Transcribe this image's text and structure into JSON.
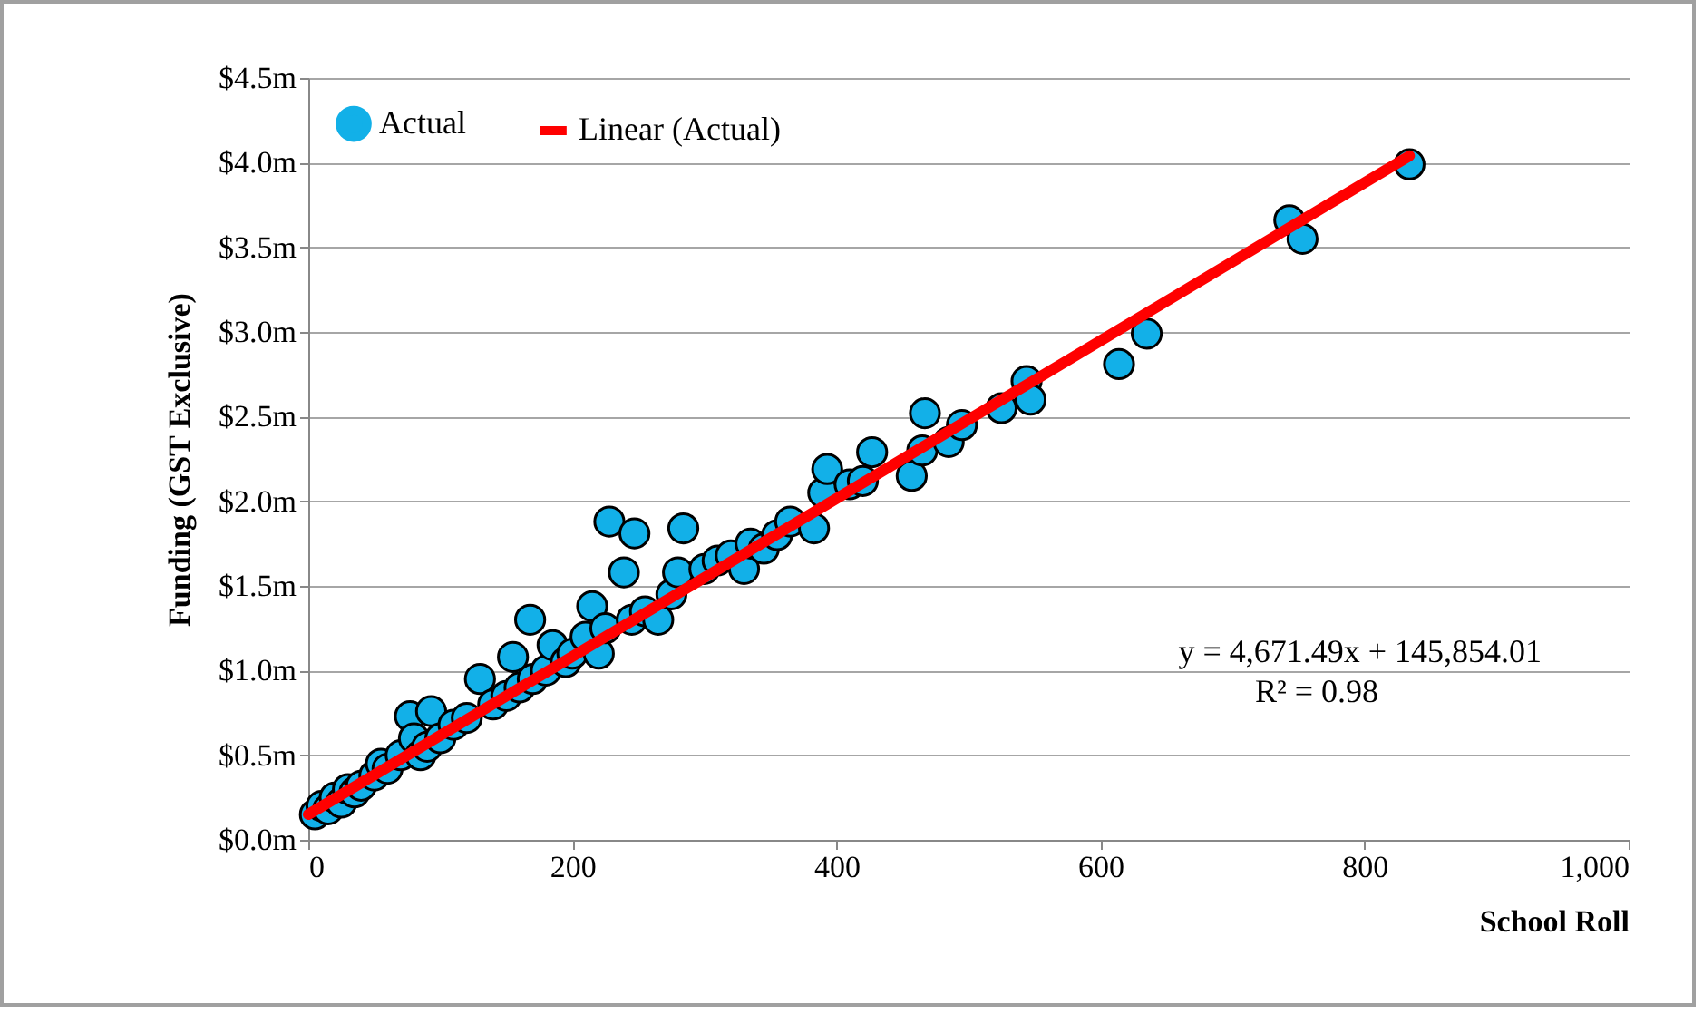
{
  "chart_data": {
    "type": "scatter",
    "xlabel": "School Roll",
    "ylabel": "Funding (GST Exclusive)",
    "xlim": [
      0,
      1000
    ],
    "xticks": [
      0,
      200,
      400,
      600,
      800,
      {
        "value": 1000,
        "label": "1,000"
      }
    ],
    "ylim": [
      0,
      4.5
    ],
    "yticks": [
      {
        "value": 0,
        "label": "$0.0m"
      },
      {
        "value": 0.5,
        "label": "$0.5m"
      },
      {
        "value": 1,
        "label": "$1.0m"
      },
      {
        "value": 1.5,
        "label": "$1.5m"
      },
      {
        "value": 2,
        "label": "$2.0m"
      },
      {
        "value": 2.5,
        "label": "$2.5m"
      },
      {
        "value": 3,
        "label": "$3.0m"
      },
      {
        "value": 3.5,
        "label": "$3.5m"
      },
      {
        "value": 4,
        "label": "$4.0m"
      },
      {
        "value": 4.5,
        "label": "$4.5m"
      }
    ],
    "grid": "y",
    "legend": "top left",
    "annotations": [
      "y = 4,671.49x + 145,854.01",
      "R² = 0.98"
    ],
    "series": [
      {
        "name": "Actual",
        "marker": "circle",
        "color": "#12b0e8",
        "x": [
          5,
          10,
          15,
          20,
          25,
          30,
          35,
          40,
          50,
          55,
          60,
          70,
          77,
          80,
          85,
          90,
          93,
          100,
          110,
          120,
          130,
          140,
          150,
          155,
          160,
          168,
          170,
          180,
          185,
          195,
          200,
          210,
          215,
          220,
          225,
          228,
          239,
          245,
          247,
          255,
          265,
          275,
          280,
          284,
          300,
          310,
          320,
          330,
          335,
          345,
          355,
          365,
          383,
          390,
          393,
          410,
          420,
          427,
          457,
          465,
          467,
          485,
          495,
          525,
          544,
          547,
          614,
          635,
          743,
          753,
          834
        ],
        "values": [
          0.15,
          0.2,
          0.18,
          0.25,
          0.22,
          0.3,
          0.28,
          0.32,
          0.38,
          0.45,
          0.42,
          0.5,
          0.73,
          0.6,
          0.5,
          0.55,
          0.76,
          0.6,
          0.68,
          0.72,
          0.95,
          0.8,
          0.85,
          1.08,
          0.9,
          1.3,
          0.95,
          1.0,
          1.15,
          1.05,
          1.1,
          1.2,
          1.38,
          1.1,
          1.25,
          1.88,
          1.58,
          1.3,
          1.81,
          1.35,
          1.3,
          1.45,
          1.58,
          1.84,
          1.6,
          1.65,
          1.68,
          1.6,
          1.75,
          1.72,
          1.8,
          1.88,
          1.84,
          2.05,
          2.19,
          2.1,
          2.12,
          2.29,
          2.15,
          2.3,
          2.52,
          2.35,
          2.45,
          2.55,
          2.71,
          2.6,
          2.81,
          2.99,
          3.66,
          3.55,
          3.99
        ]
      },
      {
        "name": "Linear (Actual)",
        "type": "line",
        "color": "#ff0000",
        "line_style": "solid",
        "x": [
          0,
          834
        ],
        "values": [
          0.15,
          4.04
        ]
      }
    ]
  }
}
